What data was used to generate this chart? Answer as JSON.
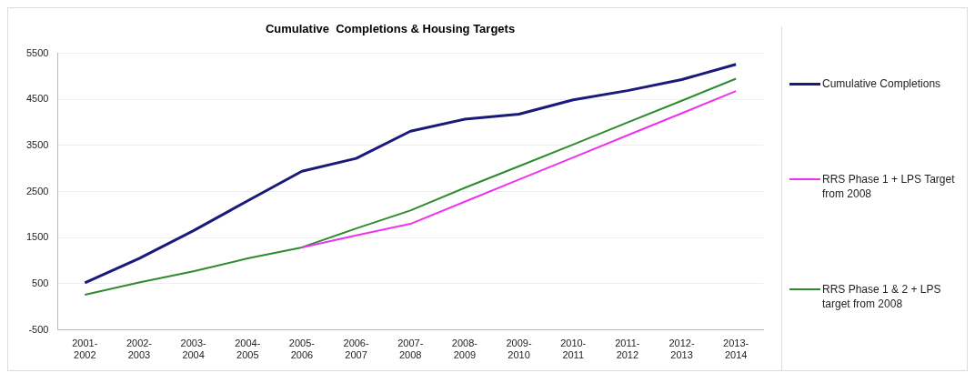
{
  "chart_data": {
    "type": "line",
    "title": "Cumulative  Completions & Housing Targets",
    "categories": [
      "2001-2002",
      "2002-2003",
      "2003-2004",
      "2004-2005",
      "2005-2006",
      "2006-2007",
      "2007-2008",
      "2008-2009",
      "2009-2010",
      "2010-2011",
      "2011-2012",
      "2012-2013",
      "2013-2014"
    ],
    "series": [
      {
        "name": "Cumulative Completions",
        "color": "#1a1a7a",
        "values": [
          520,
          1050,
          1650,
          2300,
          2940,
          3220,
          3810,
          4070,
          4180,
          4490,
          4690,
          4930,
          5260
        ]
      },
      {
        "name": "RRS Phase 1 + LPS Target from 2008",
        "color": "#ee33ee",
        "values": [
          null,
          null,
          null,
          null,
          1290,
          1550,
          1800,
          2280,
          2760,
          3240,
          3720,
          4200,
          4680
        ]
      },
      {
        "name": "RRS Phase 1 & 2 + LPS target from 2008",
        "color": "#2e8b2e",
        "values": [
          260,
          530,
          770,
          1050,
          1290,
          1700,
          2090,
          2580,
          3050,
          3520,
          4000,
          4470,
          4950
        ]
      }
    ],
    "ylim": [
      -500,
      5500
    ],
    "yticks": [
      -500,
      500,
      1500,
      2500,
      3500,
      4500,
      5500
    ],
    "grid": "y",
    "legend": "right",
    "marker": "none",
    "line_style": "solid"
  }
}
